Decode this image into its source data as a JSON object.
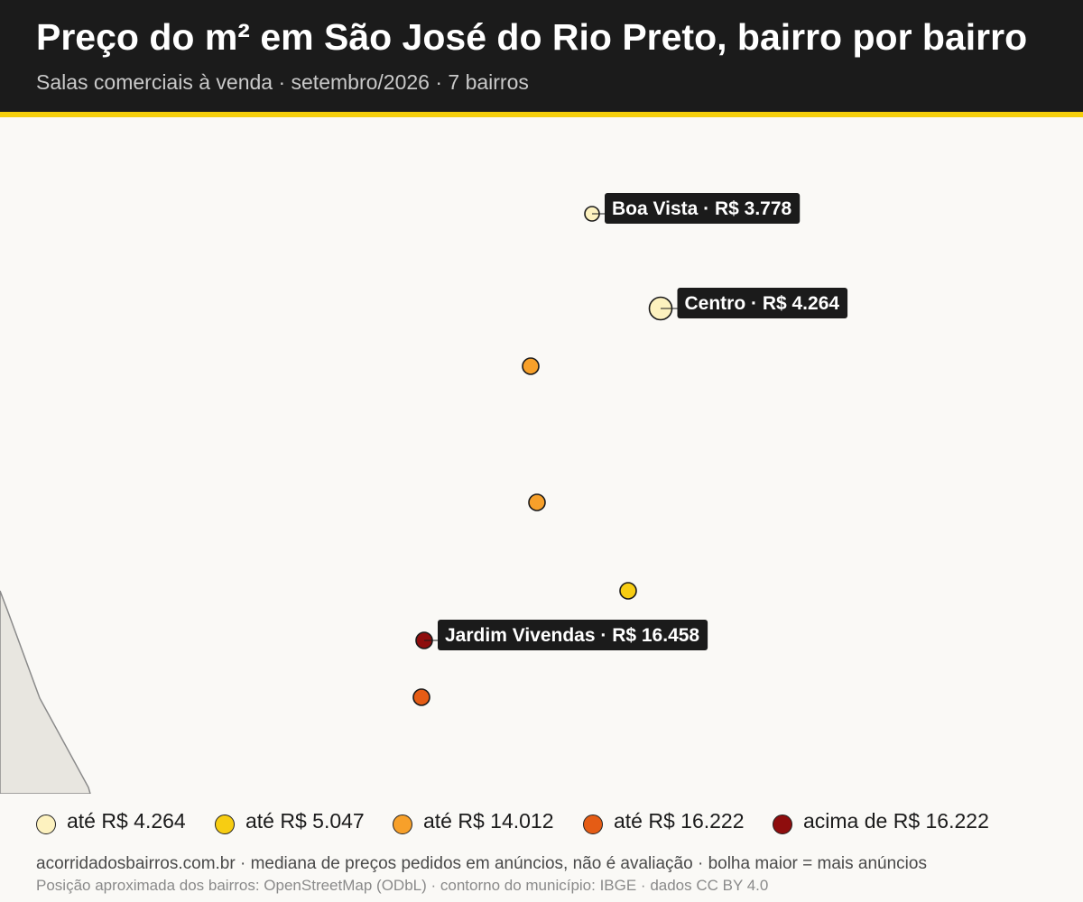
{
  "header": {
    "title": "Preço do m² em São José do Rio Preto, bairro por bairro",
    "subtitle": "Salas comerciais à venda · setembro/2026 · 7 bairros"
  },
  "map": {
    "bairros": [
      {
        "label": "Boa Vista · R$ 3.778",
        "color": "#fdf2bf",
        "size": "small"
      },
      {
        "label": "Centro · R$ 4.264",
        "color": "#fdf2bf",
        "size": "large"
      },
      {
        "label": "",
        "color": "#f7a02a",
        "size": "medium"
      },
      {
        "label": "",
        "color": "#f7a02a",
        "size": "medium"
      },
      {
        "label": "",
        "color": "#f7cd12",
        "size": "medium"
      },
      {
        "label": "Jardim Vivendas · R$ 16.458",
        "color": "#8e0d0d",
        "size": "medium"
      },
      {
        "label": "",
        "color": "#e55c15",
        "size": "medium"
      }
    ]
  },
  "legend": {
    "items": [
      {
        "label": "até R$ 4.264",
        "color": "#fdf2bf"
      },
      {
        "label": "até R$ 5.047",
        "color": "#f7cd12"
      },
      {
        "label": "até R$ 14.012",
        "color": "#f7a02a"
      },
      {
        "label": "até R$ 16.222",
        "color": "#e55c15"
      },
      {
        "label": "acima de R$ 16.222",
        "color": "#8e0d0d"
      }
    ]
  },
  "footer": {
    "line1": "acorridadosbairros.com.br · mediana de preços pedidos em anúncios, não é avaliação · bolha maior = mais anúncios",
    "line2": "Posição aproximada dos bairros: OpenStreetMap (ODbL) · contorno do município: IBGE · dados CC BY 4.0"
  },
  "colors": {
    "header_bg": "#1b1b1b",
    "accent": "#f5cf0b",
    "background": "#faf9f6",
    "municipality_fill": "#e8e6e0"
  }
}
